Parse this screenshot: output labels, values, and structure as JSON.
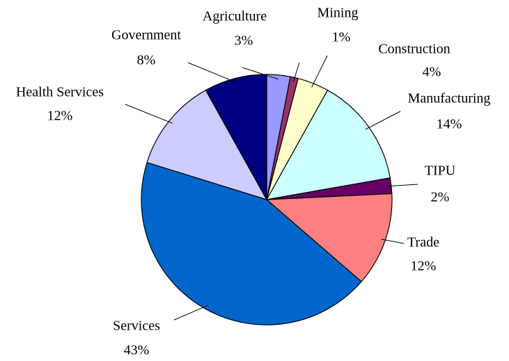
{
  "chart_data": {
    "type": "pie",
    "categories": [
      "Agriculture",
      "Mining",
      "Construction",
      "Manufacturing",
      "TIPU",
      "Trade",
      "Services",
      "Health Services",
      "Government"
    ],
    "values": [
      3,
      1,
      4,
      14,
      2,
      12,
      43,
      12,
      8
    ],
    "value_labels": [
      "3%",
      "1%",
      "4%",
      "14%",
      "2%",
      "12%",
      "43%",
      "12%",
      "8%"
    ],
    "colors": [
      "#9999ff",
      "#993366",
      "#ffffcc",
      "#ccffff",
      "#660066",
      "#ff8080",
      "#0066cc",
      "#ccccff",
      "#000080"
    ]
  }
}
